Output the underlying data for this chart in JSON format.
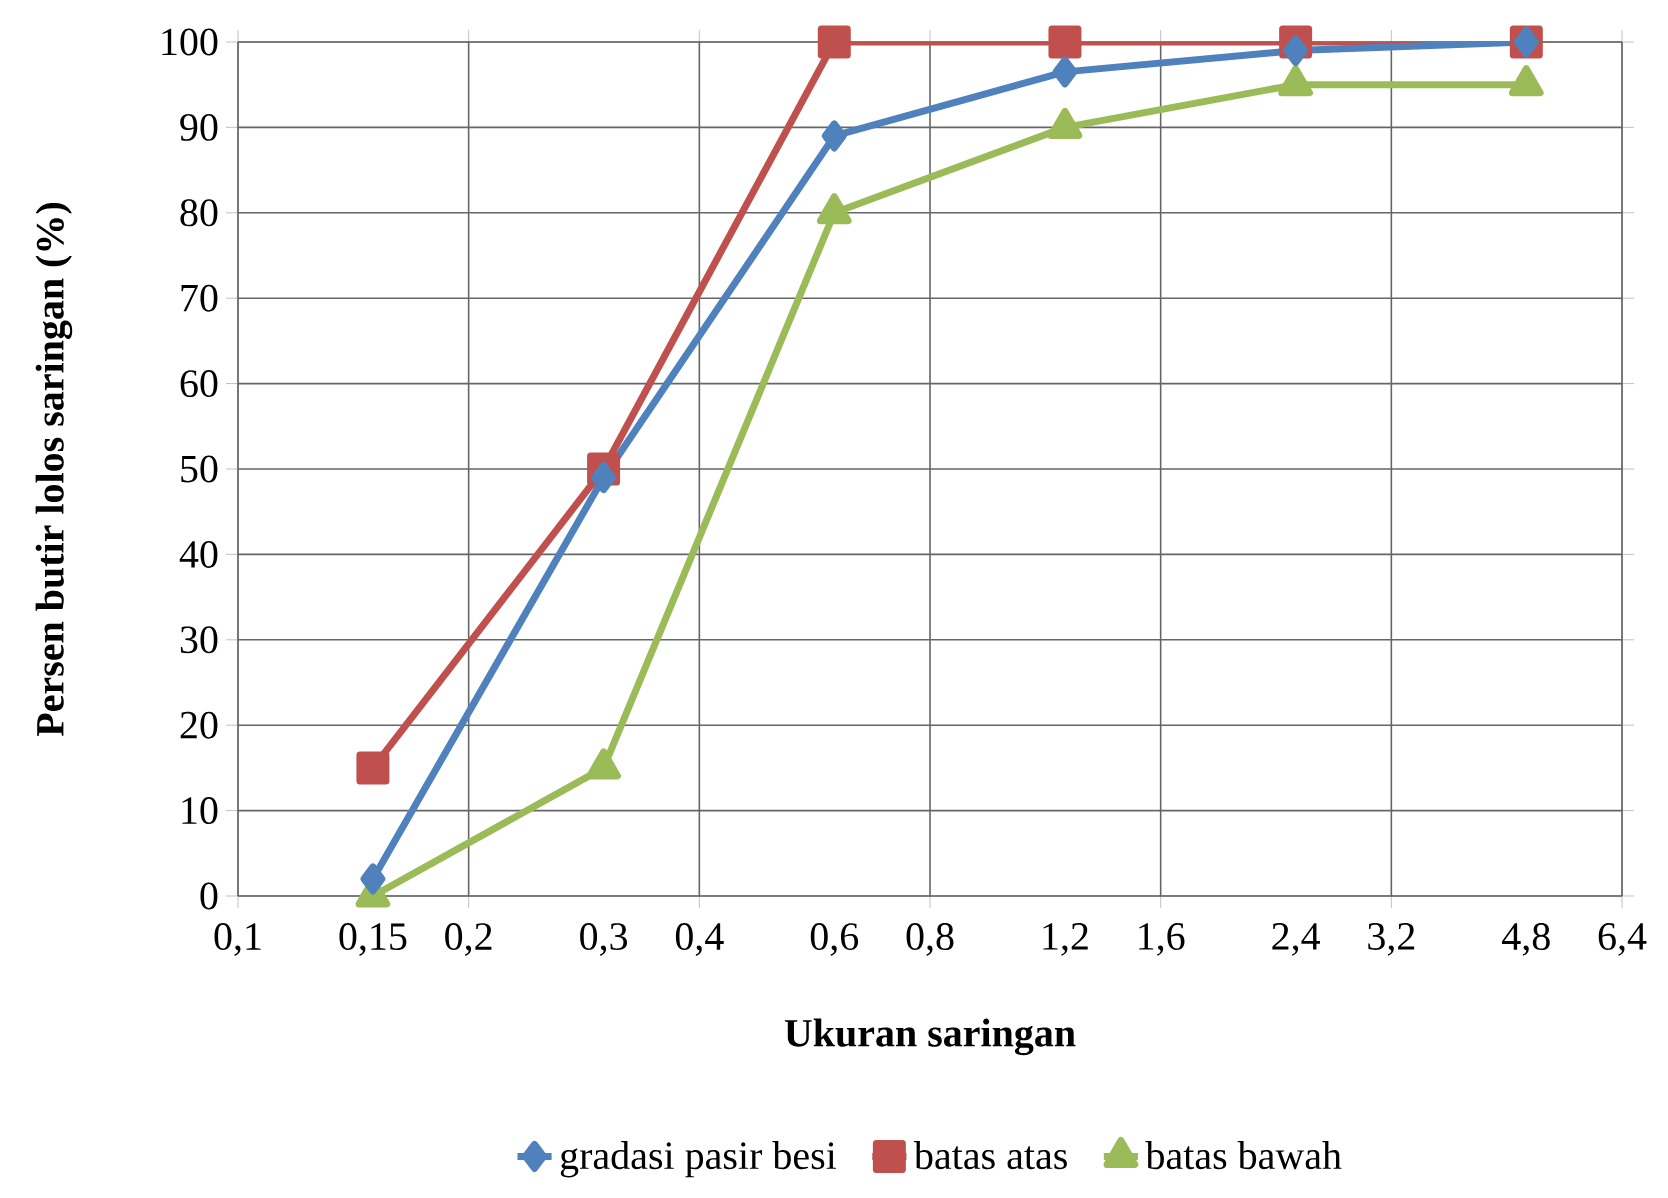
{
  "chart_data": {
    "type": "line",
    "xlabel": "Ukuran saringan",
    "ylabel": "Persen butir lolos saringan (%)",
    "log": "x",
    "grid": true,
    "legend": "bottom",
    "xlim": [
      0.1,
      6.4
    ],
    "ylim": [
      0,
      100
    ],
    "xticks": [
      {
        "value": 0.1,
        "label": "0,1"
      },
      {
        "value": 0.15,
        "label": "0,15"
      },
      {
        "value": 0.2,
        "label": "0,2"
      },
      {
        "value": 0.3,
        "label": "0,3"
      },
      {
        "value": 0.4,
        "label": "0,4"
      },
      {
        "value": 0.6,
        "label": "0,6"
      },
      {
        "value": 0.8,
        "label": "0,8"
      },
      {
        "value": 1.2,
        "label": "1,2"
      },
      {
        "value": 1.6,
        "label": "1,6"
      },
      {
        "value": 2.4,
        "label": "2,4"
      },
      {
        "value": 3.2,
        "label": "3,2"
      },
      {
        "value": 4.8,
        "label": "4,8"
      },
      {
        "value": 6.4,
        "label": "6,4"
      }
    ],
    "yticks": [
      0,
      10,
      20,
      30,
      40,
      50,
      60,
      70,
      80,
      90,
      100
    ],
    "x": [
      0.15,
      0.3,
      0.6,
      1.2,
      2.4,
      4.8
    ],
    "series": [
      {
        "name": "gradasi pasir besi",
        "color": "#4f81bd",
        "marker": "diamond",
        "values": [
          2,
          49,
          89,
          96.5,
          99,
          100
        ]
      },
      {
        "name": "batas atas",
        "color": "#c0504d",
        "marker": "square",
        "values": [
          15,
          50,
          100,
          100,
          100,
          100
        ]
      },
      {
        "name": "batas bawah",
        "color": "#9bbb59",
        "marker": "triangle",
        "values": [
          0,
          15,
          80,
          90,
          95,
          95
        ]
      }
    ]
  }
}
